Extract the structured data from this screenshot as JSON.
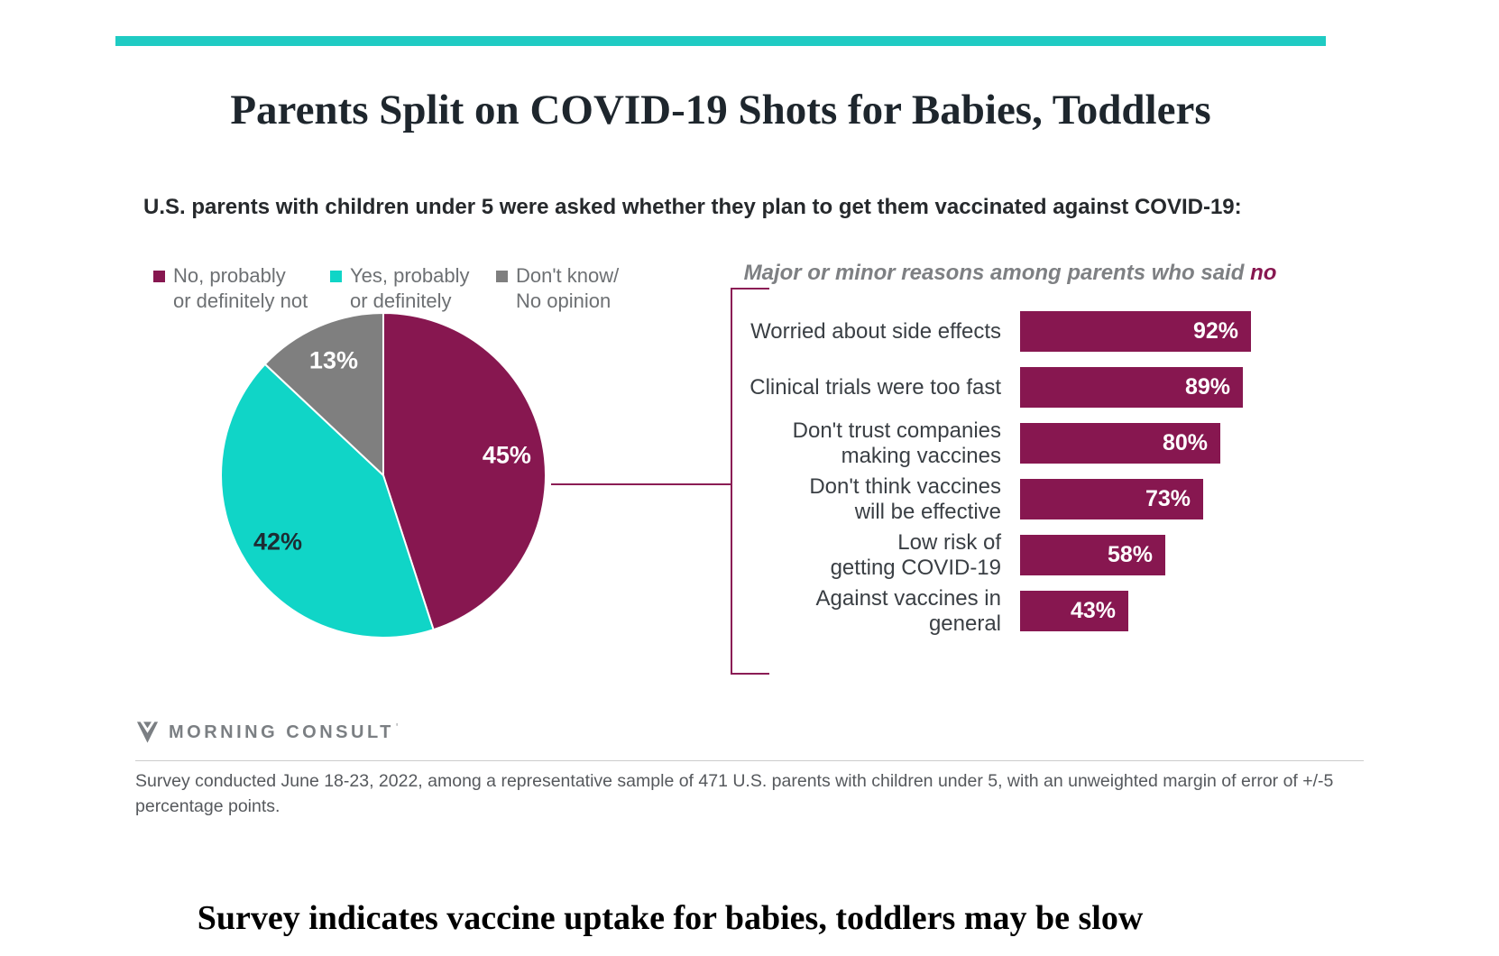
{
  "header": {
    "title": "Parents Split on COVID-19 Shots for Babies, Toddlers",
    "subtitle": "U.S. parents with children under 5 were asked whether they plan to get them vaccinated against COVID-19:"
  },
  "colors": {
    "accent_teal_bar": "#1fcbc3",
    "pie_no": "#871750",
    "pie_yes": "#10d5c7",
    "pie_dont_know": "#7f7f7f",
    "bar_maroon": "#871750",
    "connector_maroon": "#8b1d55",
    "legend_text_gray": "#6d7073"
  },
  "chart_data": [
    {
      "type": "pie",
      "unit": "percent",
      "start_angle_deg": 0,
      "direction": "clockwise",
      "legend_position": "top-left",
      "slices": [
        {
          "label": "No, probably or definitely not",
          "legend_lines": [
            "No, probably",
            "or definitely not"
          ],
          "value": 45,
          "value_label": "45%",
          "color": "#871750",
          "value_label_color": "#ffffff"
        },
        {
          "label": "Yes, probably or definitely",
          "legend_lines": [
            "Yes, probably",
            "or definitely"
          ],
          "value": 42,
          "value_label": "42%",
          "color": "#10d5c7",
          "value_label_color": "#1d2c33"
        },
        {
          "label": "Don't know/No opinion",
          "legend_lines": [
            "Don't know/",
            "No opinion"
          ],
          "value": 13,
          "value_label": "13%",
          "color": "#7f7f7f",
          "value_label_color": "#ffffff"
        }
      ]
    },
    {
      "type": "bar",
      "orientation": "horizontal",
      "title": "Major or minor reasons among parents who said no",
      "categories": [
        "Worried about side effects",
        "Clinical trials were too fast",
        "Don't trust companies making vaccines",
        "Don't think vaccines will be effective",
        "Low risk of getting COVID-19",
        "Against vaccines in general"
      ],
      "category_lines": [
        [
          "Worried about side effects"
        ],
        [
          "Clinical trials were too fast"
        ],
        [
          "Don't trust companies",
          "making vaccines"
        ],
        [
          "Don't think vaccines",
          "will be effective"
        ],
        [
          "Low risk of",
          "getting COVID-19"
        ],
        [
          "Against vaccines in general"
        ]
      ],
      "values": [
        92,
        89,
        80,
        73,
        58,
        43
      ],
      "value_labels": [
        "92%",
        "89%",
        "80%",
        "73%",
        "58%",
        "43%"
      ],
      "bar_color": "#871750",
      "value_label_color": "#ffffff",
      "xlim": [
        0,
        100
      ],
      "grid": false,
      "legend": false
    }
  ],
  "reasons_heading": {
    "prefix": "Major or minor reasons among parents who said ",
    "highlight": "no"
  },
  "footer": {
    "logo_text": "MORNING CONSULT",
    "logo_mark": "'",
    "footnote": "Survey conducted June 18-23, 2022, among a representative sample of 471 U.S. parents with children under 5, with an unweighted margin of error of +/-5 percentage points."
  },
  "caption": {
    "text": "Survey indicates vaccine uptake for babies, toddlers may be slow"
  }
}
